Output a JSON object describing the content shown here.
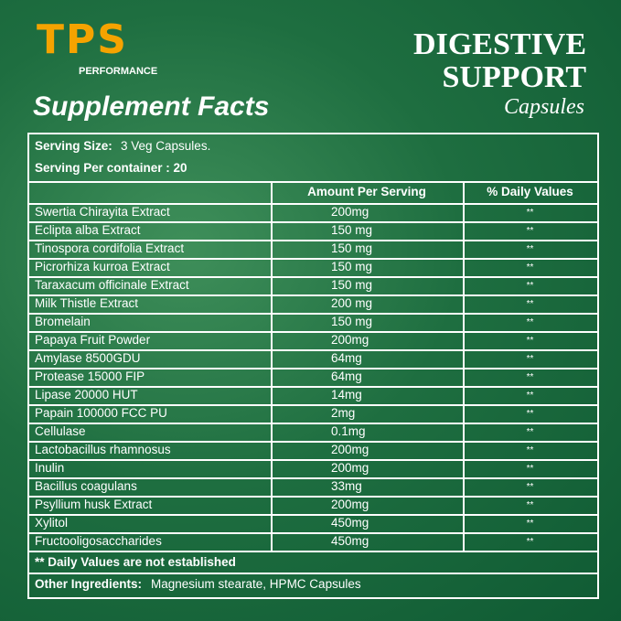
{
  "logo": {
    "mark": "TPS",
    "tagline": "PERFORMANCE"
  },
  "product": {
    "line1": "DIGESTIVE",
    "line2": "SUPPORT",
    "line3": "Capsules"
  },
  "heading": "Supplement Facts",
  "serving": {
    "size_label": "Serving Size:",
    "size_value": "3 Veg Capsules.",
    "per_container": "Serving Per container : 20"
  },
  "table": {
    "header": [
      "Amount Per Serving",
      "% Daily Values"
    ],
    "rows": [
      [
        "Swertia Chirayita Extract",
        "200mg",
        "**"
      ],
      [
        "Eclipta alba Extract",
        "150 mg",
        "**"
      ],
      [
        "Tinospora cordifolia Extract",
        "150 mg",
        "**"
      ],
      [
        "Picrorhiza kurroa Extract",
        "150 mg",
        "**"
      ],
      [
        "Taraxacum officinale Extract",
        "150 mg",
        "**"
      ],
      [
        "Milk Thistle Extract",
        "200 mg",
        "**"
      ],
      [
        "Bromelain",
        "150 mg",
        "**"
      ],
      [
        "Papaya Fruit Powder",
        "200mg",
        "**"
      ],
      [
        "Amylase 8500GDU",
        "64mg",
        "**"
      ],
      [
        "Protease 15000 FIP",
        "64mg",
        "**"
      ],
      [
        "Lipase 20000 HUT",
        "14mg",
        "**"
      ],
      [
        "Papain 100000 FCC PU",
        "2mg",
        "**"
      ],
      [
        "Cellulase",
        "0.1mg",
        "**"
      ],
      [
        "Lactobacillus rhamnosus",
        "200mg",
        "**"
      ],
      [
        "Inulin",
        "200mg",
        "**"
      ],
      [
        "Bacillus coagulans",
        "33mg",
        "**"
      ],
      [
        "Psyllium husk Extract",
        "200mg",
        "**"
      ],
      [
        "Xylitol",
        "450mg",
        "**"
      ],
      [
        "Fructooligosaccharides",
        "450mg",
        "**"
      ]
    ]
  },
  "footnote": "** Daily Values are not established",
  "other": {
    "label": "Other Ingredients:",
    "value": "Magnesium stearate, HPMC Capsules"
  }
}
